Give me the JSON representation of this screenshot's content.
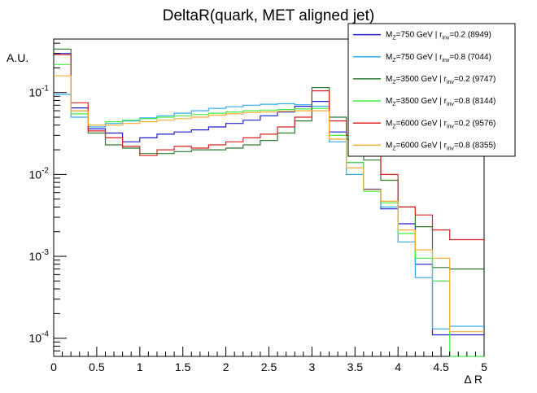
{
  "chart_data": {
    "type": "line",
    "title": "DeltaR(quark, MET aligned jet)",
    "xlabel": "Δ R",
    "ylabel": "A.U.",
    "xlim": [
      0,
      5
    ],
    "ylim": [
      6e-05,
      0.45
    ],
    "yscale": "log",
    "grid": false,
    "legend_position": "top-right",
    "x_ticks": [
      "0",
      "0.5",
      "1",
      "1.5",
      "2",
      "2.5",
      "3",
      "3.5",
      "4",
      "4.5",
      "5"
    ],
    "x_tick_values": [
      0,
      0.5,
      1,
      1.5,
      2,
      2.5,
      3,
      3.5,
      4,
      4.5,
      5
    ],
    "y_ticks": [
      {
        "value": 0.1,
        "base": "10",
        "exp": "-1"
      },
      {
        "value": 0.01,
        "base": "10",
        "exp": "-2"
      },
      {
        "value": 0.001,
        "base": "10",
        "exp": "-3"
      },
      {
        "value": 0.0001,
        "base": "10",
        "exp": "-4"
      }
    ],
    "bin_edges": [
      0,
      0.2,
      0.4,
      0.6,
      0.8,
      1.0,
      1.2,
      1.4,
      1.6,
      1.8,
      2.0,
      2.2,
      2.4,
      2.6,
      2.8,
      3.0,
      3.2,
      3.4,
      3.6,
      3.8,
      4.0,
      4.2,
      4.4,
      4.6,
      4.8,
      5.0
    ],
    "series": [
      {
        "legend": {
          "pre": "M",
          "sub1": "Z",
          "mid": "=750 GeV | r",
          "sub2": "inv",
          "post": "=0.2 (8949)"
        },
        "color": "#1f1fcf",
        "values": [
          0.3,
          0.065,
          0.036,
          0.032,
          0.025,
          0.028,
          0.031,
          0.033,
          0.035,
          0.038,
          0.042,
          0.046,
          0.052,
          0.058,
          0.068,
          0.078,
          0.033,
          0.014,
          0.0066,
          0.0038,
          0.0025,
          0.0008,
          0.00011,
          0.00011,
          0.00011
        ]
      },
      {
        "legend": {
          "pre": "M",
          "sub1": "Z",
          "mid": "=750 GeV | r",
          "sub2": "inv",
          "post": "=0.8 (7044)"
        },
        "color": "#33aaee",
        "values": [
          0.095,
          0.05,
          0.038,
          0.042,
          0.045,
          0.049,
          0.052,
          0.056,
          0.06,
          0.064,
          0.067,
          0.07,
          0.072,
          0.073,
          0.071,
          0.068,
          0.025,
          0.01,
          0.0065,
          0.004,
          0.0015,
          0.00055,
          0.00013,
          0.00014,
          0.00014
        ]
      },
      {
        "legend": {
          "pre": "M",
          "sub1": "Z",
          "mid": "=3500 GeV | r",
          "sub2": "inv",
          "post": "=0.2 (9747)"
        },
        "color": "#2d7a2d",
        "values": [
          0.34,
          0.06,
          0.032,
          0.023,
          0.021,
          0.018,
          0.018,
          0.019,
          0.02,
          0.02,
          0.021,
          0.023,
          0.026,
          0.032,
          0.045,
          0.115,
          0.05,
          0.027,
          0.015,
          0.0085,
          0.004,
          0.0023,
          0.00073,
          0.0007,
          0.0007
        ]
      },
      {
        "legend": {
          "pre": "M",
          "sub1": "Z",
          "mid": "=3500 GeV | r",
          "sub2": "inv",
          "post": "=0.8 (8144)"
        },
        "color": "#44ee44",
        "values": [
          0.22,
          0.055,
          0.04,
          0.044,
          0.046,
          0.048,
          0.05,
          0.052,
          0.054,
          0.056,
          0.058,
          0.06,
          0.061,
          0.062,
          0.063,
          0.064,
          0.03,
          0.014,
          0.0062,
          0.0045,
          0.0019,
          0.00095,
          0.0005,
          6e-05,
          6e-05
        ]
      },
      {
        "legend": {
          "pre": "M",
          "sub1": "Z",
          "mid": "=6000 GeV | r",
          "sub2": "inv",
          "post": "=0.2 (9576)"
        },
        "color": "#dd2222",
        "values": [
          0.29,
          0.075,
          0.034,
          0.028,
          0.022,
          0.017,
          0.02,
          0.022,
          0.021,
          0.023,
          0.025,
          0.028,
          0.031,
          0.038,
          0.05,
          0.105,
          0.045,
          0.03,
          0.018,
          0.01,
          0.004,
          0.0032,
          0.0021,
          0.0016,
          0.0016
        ]
      },
      {
        "legend": {
          "pre": "M",
          "sub1": "Z",
          "mid": "=6000 GeV | r",
          "sub2": "inv",
          "post": "=0.8 (8355)"
        },
        "color": "#ffaa33",
        "values": [
          0.16,
          0.06,
          0.04,
          0.04,
          0.042,
          0.044,
          0.046,
          0.048,
          0.05,
          0.053,
          0.055,
          0.057,
          0.058,
          0.059,
          0.06,
          0.06,
          0.027,
          0.012,
          0.0065,
          0.0047,
          0.0021,
          0.0012,
          0.00095,
          0.00012,
          0.00012
        ]
      }
    ]
  }
}
